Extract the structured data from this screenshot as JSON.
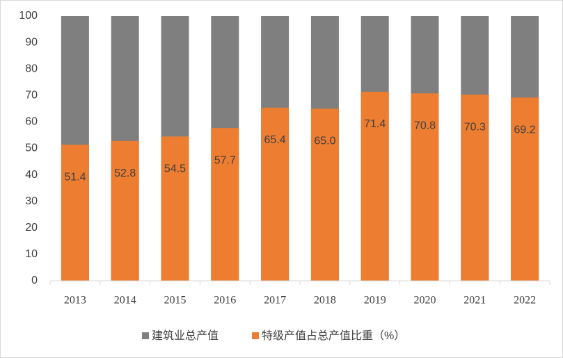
{
  "chart_data": {
    "type": "bar",
    "categories": [
      "2013",
      "2014",
      "2015",
      "2016",
      "2017",
      "2018",
      "2019",
      "2020",
      "2021",
      "2022"
    ],
    "series": [
      {
        "name": "建筑业总产值",
        "color": "#7f7f7f",
        "values": [
          100,
          100,
          100,
          100,
          100,
          100,
          100,
          100,
          100,
          100
        ]
      },
      {
        "name": "特级产值占总产值比重（%）",
        "color": "#ed7d31",
        "values": [
          51.4,
          52.8,
          54.5,
          57.7,
          65.4,
          65.0,
          71.4,
          70.8,
          70.3,
          69.2
        ],
        "value_labels": [
          "51.4",
          "52.8",
          "54.5",
          "57.7",
          "65.4",
          "65.0",
          "71.4",
          "70.8",
          "70.3",
          "69.2"
        ]
      }
    ],
    "ylim": [
      0,
      100
    ],
    "yticks": [
      0,
      10,
      20,
      30,
      40,
      50,
      60,
      70,
      80,
      90,
      100
    ],
    "legend": "bottom"
  }
}
